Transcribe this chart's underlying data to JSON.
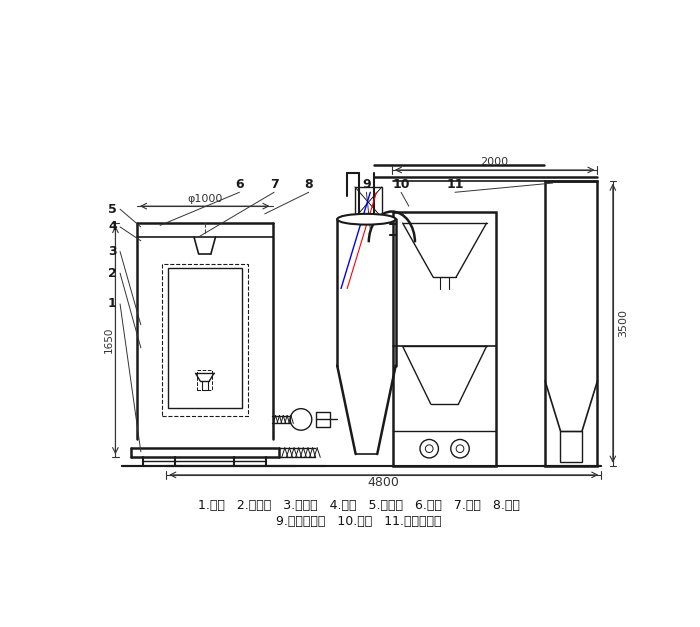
{
  "bg_color": "#ffffff",
  "line_color": "#1a1a1a",
  "caption_line1": "1.底座   2.回风道   3.激振器   4.筛网   5.进料斗   6.风机   7.绞龙   8.料仓",
  "caption_line2": "9.旋风分离器   10.支架   11.布袋除尘器",
  "dim_phi1000": "φ1000",
  "dim_1650": "1650",
  "dim_2000": "2000",
  "dim_3500": "3500",
  "dim_4800": "4800"
}
